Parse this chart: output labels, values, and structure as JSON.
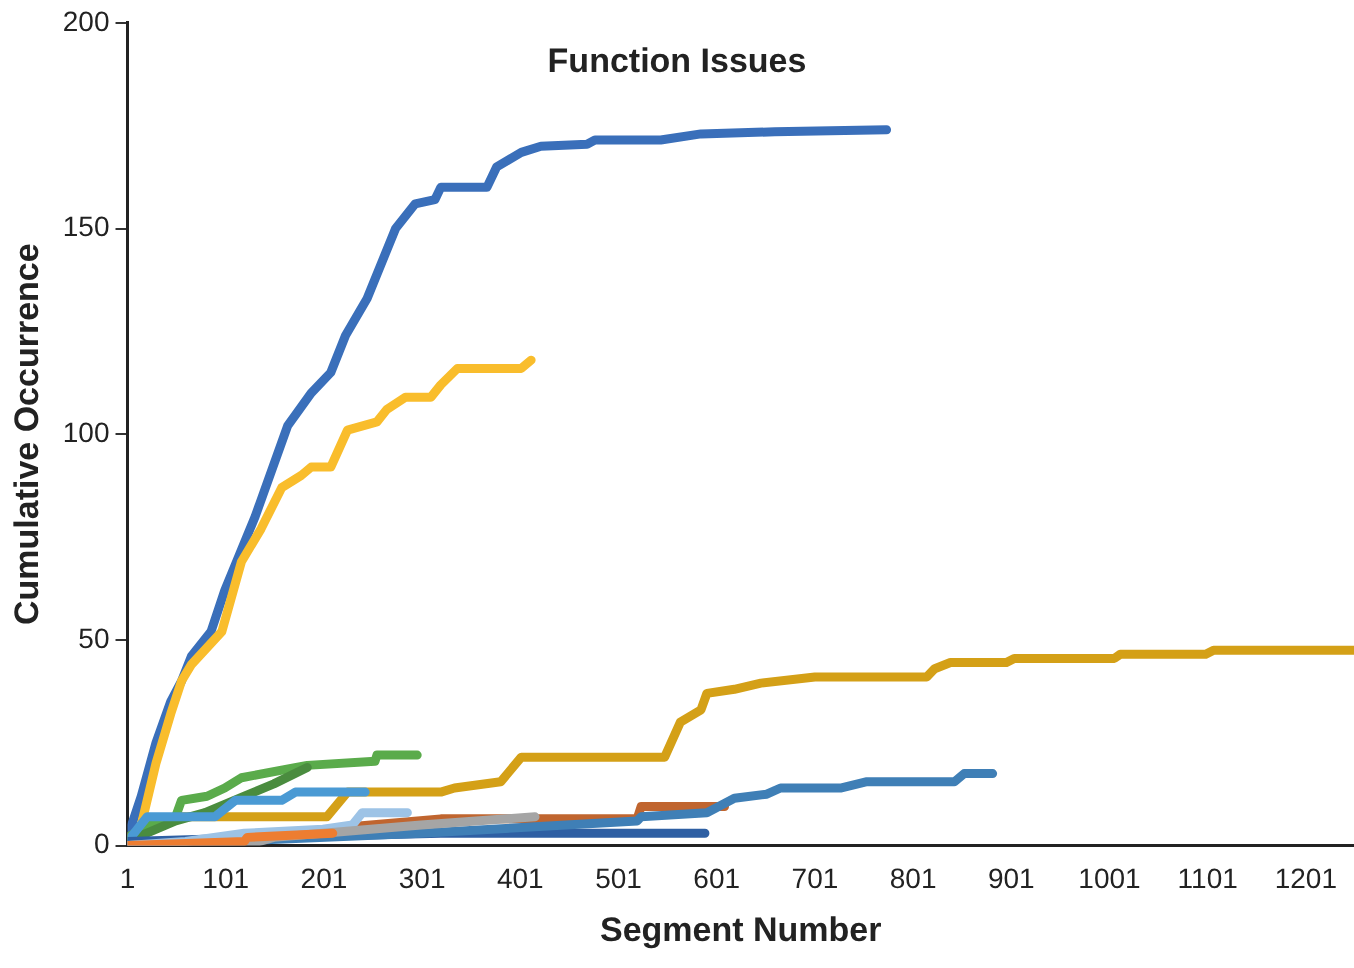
{
  "chart_data": {
    "type": "line",
    "title": "Function Issues",
    "xlabel": "Segment Number",
    "ylabel": "Cumulative Occurrence",
    "xlim": [
      1,
      1250
    ],
    "xticks": [
      1,
      101,
      201,
      301,
      401,
      501,
      601,
      701,
      801,
      901,
      1001,
      1101,
      1201
    ],
    "ylim": [
      0,
      200
    ],
    "yticks": [
      0,
      50,
      100,
      150,
      200
    ],
    "grid": false,
    "legend": false,
    "marker": "none",
    "line_style": "solid",
    "series": [
      {
        "color": "#3a6fba",
        "x": [
          1,
          15,
          30,
          45,
          56,
          66,
          86,
          100,
          131,
          164,
          188,
          208,
          223,
          245,
          274,
          294,
          314,
          320,
          367,
          377,
          402,
          422,
          469,
          477,
          544,
          585,
          660,
          774
        ],
        "values": [
          2,
          12,
          25,
          35,
          40,
          46,
          52,
          62,
          80,
          102,
          110,
          115,
          124,
          133,
          150,
          156,
          157,
          160,
          160,
          165,
          168.5,
          170,
          170.5,
          171.5,
          171.5,
          173,
          173.5,
          174
        ]
      },
      {
        "color": "#f9bd2c",
        "x": [
          1,
          15,
          30,
          45,
          56,
          66,
          97,
          117,
          137,
          158,
          178,
          188,
          208,
          225,
          255,
          265,
          284,
          310,
          320,
          337,
          402,
          412
        ],
        "values": [
          0,
          5,
          20,
          32,
          40,
          44,
          52,
          69,
          77,
          87,
          90,
          92,
          92,
          101,
          103,
          106,
          109,
          109,
          112,
          116,
          116,
          118
        ]
      },
      {
        "color": "#d4a017",
        "x": [
          1,
          50,
          204,
          225,
          320,
          334,
          381,
          402,
          548,
          564,
          585,
          591,
          619,
          646,
          701,
          815,
          823,
          839,
          896,
          904,
          1006,
          1012,
          1099,
          1107,
          1250
        ],
        "values": [
          2,
          7,
          7,
          13,
          13,
          14,
          15.5,
          21.5,
          21.5,
          30,
          33,
          37,
          38,
          39.5,
          41,
          41,
          43,
          44.5,
          44.5,
          45.5,
          45.5,
          46.5,
          46.5,
          47.5,
          47.5
        ]
      },
      {
        "color": "#5aab4b",
        "x": [
          1,
          19,
          50,
          56,
          82,
          100,
          117,
          184,
          253,
          255,
          296
        ],
        "values": [
          2,
          4.5,
          7,
          11,
          12,
          14,
          16.5,
          19.5,
          20.5,
          22,
          22
        ]
      },
      {
        "color": "#4a8c3f",
        "x": [
          1,
          50,
          80,
          120,
          150,
          184
        ],
        "values": [
          1,
          6,
          8,
          12,
          15,
          19
        ]
      },
      {
        "color": "#4a9ad4",
        "x": [
          1,
          21,
          90,
          111,
          158,
          172,
          243
        ],
        "values": [
          1,
          7,
          7,
          11,
          11,
          13,
          13
        ]
      },
      {
        "color": "#c0652f",
        "x": [
          1,
          150,
          225,
          320,
          520,
          524,
          609
        ],
        "values": [
          0,
          2,
          4.5,
          6.5,
          6.5,
          9.5,
          9.5
        ]
      },
      {
        "color": "#2e5fa3",
        "x": [
          1,
          150,
          320,
          589
        ],
        "values": [
          1,
          2,
          3,
          3
        ]
      },
      {
        "color": "#3f7fb6",
        "x": [
          1,
          300,
          520,
          524,
          591,
          619,
          652,
          666,
          727,
          753,
          843,
          853,
          882
        ],
        "values": [
          0,
          3,
          6,
          7,
          8,
          11.5,
          12.5,
          14,
          14,
          15.5,
          15.5,
          17.5,
          17.5
        ]
      },
      {
        "color": "#9dc3e6",
        "x": [
          1,
          60,
          120,
          200,
          230,
          240,
          286
        ],
        "values": [
          0,
          1,
          3,
          4,
          5,
          8,
          8
        ]
      },
      {
        "color": "#a5a5a5",
        "x": [
          1,
          120,
          150,
          200,
          300,
          416
        ],
        "values": [
          0,
          0,
          2,
          3,
          5,
          7
        ]
      },
      {
        "color": "#ed7d31",
        "x": [
          1,
          120,
          123,
          210
        ],
        "values": [
          0,
          1,
          2,
          3
        ]
      }
    ]
  }
}
